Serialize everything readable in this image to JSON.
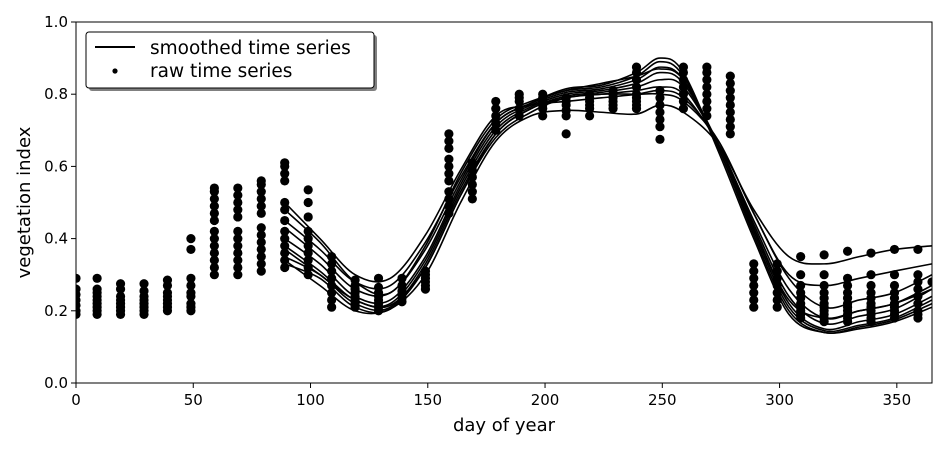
{
  "chart_data": {
    "type": "scatter",
    "xlabel": "day of year",
    "ylabel": "vegetation index",
    "xlim": [
      0,
      365
    ],
    "ylim": [
      0.0,
      1.0
    ],
    "xticks": [
      "0",
      "50",
      "100",
      "150",
      "200",
      "250",
      "300",
      "350"
    ],
    "yticks": [
      "0.0",
      "0.2",
      "0.4",
      "0.6",
      "0.8",
      "1.0"
    ],
    "grid": false,
    "legend_position": "top-left",
    "legend": [
      {
        "label": "smoothed time series",
        "marker": "line"
      },
      {
        "label": "raw time series",
        "marker": "dot"
      }
    ],
    "color": "#000000",
    "raw_time_series": [
      {
        "x": 0,
        "y": [
          0.19,
          0.2,
          0.215,
          0.23,
          0.245,
          0.26,
          0.29
        ]
      },
      {
        "x": 9,
        "y": [
          0.19,
          0.2,
          0.21,
          0.22,
          0.23,
          0.24,
          0.25,
          0.26,
          0.29
        ]
      },
      {
        "x": 19,
        "y": [
          0.19,
          0.2,
          0.21,
          0.22,
          0.23,
          0.24,
          0.26,
          0.275
        ]
      },
      {
        "x": 29,
        "y": [
          0.19,
          0.2,
          0.21,
          0.22,
          0.23,
          0.24,
          0.255,
          0.275
        ]
      },
      {
        "x": 39,
        "y": [
          0.2,
          0.21,
          0.22,
          0.23,
          0.24,
          0.25,
          0.27,
          0.285
        ]
      },
      {
        "x": 49,
        "y": [
          0.2,
          0.21,
          0.22,
          0.24,
          0.25,
          0.27,
          0.29,
          0.37,
          0.4
        ]
      },
      {
        "x": 59,
        "y": [
          0.3,
          0.32,
          0.34,
          0.36,
          0.38,
          0.4,
          0.42,
          0.45,
          0.47,
          0.49,
          0.51,
          0.53,
          0.54
        ]
      },
      {
        "x": 69,
        "y": [
          0.3,
          0.32,
          0.34,
          0.36,
          0.38,
          0.4,
          0.42,
          0.46,
          0.48,
          0.5,
          0.52,
          0.54
        ]
      },
      {
        "x": 79,
        "y": [
          0.31,
          0.33,
          0.35,
          0.37,
          0.39,
          0.41,
          0.43,
          0.47,
          0.49,
          0.51,
          0.53,
          0.55,
          0.56
        ]
      },
      {
        "x": 89,
        "y": [
          0.32,
          0.34,
          0.36,
          0.38,
          0.4,
          0.42,
          0.45,
          0.48,
          0.5,
          0.56,
          0.58,
          0.6,
          0.61
        ]
      },
      {
        "x": 99,
        "y": [
          0.3,
          0.32,
          0.34,
          0.36,
          0.38,
          0.4,
          0.42,
          0.46,
          0.5,
          0.535
        ]
      },
      {
        "x": 109,
        "y": [
          0.21,
          0.23,
          0.25,
          0.27,
          0.29,
          0.31,
          0.33,
          0.35
        ]
      },
      {
        "x": 119,
        "y": [
          0.21,
          0.22,
          0.23,
          0.24,
          0.25,
          0.26,
          0.27,
          0.285
        ]
      },
      {
        "x": 129,
        "y": [
          0.2,
          0.21,
          0.22,
          0.23,
          0.24,
          0.25,
          0.265,
          0.29
        ]
      },
      {
        "x": 139,
        "y": [
          0.225,
          0.235,
          0.245,
          0.255,
          0.27,
          0.29
        ]
      },
      {
        "x": 149,
        "y": [
          0.26,
          0.27,
          0.28,
          0.29,
          0.3,
          0.31
        ]
      },
      {
        "x": 159,
        "y": [
          0.47,
          0.49,
          0.51,
          0.53,
          0.56,
          0.58,
          0.6,
          0.62,
          0.65,
          0.67,
          0.69
        ]
      },
      {
        "x": 169,
        "y": [
          0.51,
          0.53,
          0.55,
          0.57,
          0.59,
          0.61
        ]
      },
      {
        "x": 179,
        "y": [
          0.7,
          0.72,
          0.74,
          0.76,
          0.78
        ]
      },
      {
        "x": 189,
        "y": [
          0.74,
          0.76,
          0.78,
          0.79,
          0.8
        ]
      },
      {
        "x": 199,
        "y": [
          0.74,
          0.76,
          0.77,
          0.78,
          0.79,
          0.8
        ]
      },
      {
        "x": 209,
        "y": [
          0.69,
          0.74,
          0.755,
          0.77,
          0.78,
          0.79
        ]
      },
      {
        "x": 219,
        "y": [
          0.74,
          0.76,
          0.77,
          0.78,
          0.79,
          0.8
        ]
      },
      {
        "x": 229,
        "y": [
          0.76,
          0.77,
          0.78,
          0.79,
          0.8,
          0.81
        ]
      },
      {
        "x": 239,
        "y": [
          0.76,
          0.77,
          0.78,
          0.79,
          0.8,
          0.82,
          0.84,
          0.86,
          0.875
        ]
      },
      {
        "x": 249,
        "y": [
          0.675,
          0.71,
          0.73,
          0.75,
          0.77,
          0.79,
          0.81
        ]
      },
      {
        "x": 259,
        "y": [
          0.76,
          0.78,
          0.8,
          0.82,
          0.84,
          0.86,
          0.875
        ]
      },
      {
        "x": 269,
        "y": [
          0.74,
          0.76,
          0.78,
          0.8,
          0.82,
          0.84,
          0.86,
          0.875
        ]
      },
      {
        "x": 279,
        "y": [
          0.69,
          0.71,
          0.73,
          0.75,
          0.77,
          0.79,
          0.81,
          0.83,
          0.85
        ]
      },
      {
        "x": 289,
        "y": [
          0.21,
          0.23,
          0.25,
          0.27,
          0.29,
          0.31,
          0.33
        ]
      },
      {
        "x": 299,
        "y": [
          0.21,
          0.23,
          0.25,
          0.27,
          0.29,
          0.31,
          0.33
        ]
      },
      {
        "x": 309,
        "y": [
          0.18,
          0.19,
          0.2,
          0.21,
          0.22,
          0.235,
          0.25,
          0.27,
          0.3,
          0.35
        ]
      },
      {
        "x": 319,
        "y": [
          0.17,
          0.18,
          0.19,
          0.2,
          0.21,
          0.22,
          0.235,
          0.25,
          0.27,
          0.3,
          0.355
        ]
      },
      {
        "x": 329,
        "y": [
          0.17,
          0.18,
          0.19,
          0.2,
          0.21,
          0.22,
          0.235,
          0.25,
          0.27,
          0.29,
          0.365
        ]
      },
      {
        "x": 339,
        "y": [
          0.17,
          0.18,
          0.19,
          0.2,
          0.21,
          0.22,
          0.235,
          0.25,
          0.27,
          0.3,
          0.36
        ]
      },
      {
        "x": 349,
        "y": [
          0.18,
          0.19,
          0.2,
          0.21,
          0.22,
          0.235,
          0.25,
          0.27,
          0.3,
          0.37
        ]
      },
      {
        "x": 359,
        "y": [
          0.18,
          0.19,
          0.2,
          0.22,
          0.24,
          0.26,
          0.28,
          0.3,
          0.37
        ]
      },
      {
        "x": 365,
        "y": [
          0.28
        ]
      }
    ],
    "smoothed_time_series": [
      {
        "x": [
          89,
          104,
          119,
          134,
          149,
          164,
          179,
          194,
          209,
          224,
          239,
          249,
          259,
          274,
          289,
          304,
          319,
          334,
          349,
          365
        ],
        "y": [
          0.33,
          0.29,
          0.21,
          0.205,
          0.32,
          0.52,
          0.68,
          0.75,
          0.79,
          0.8,
          0.81,
          0.82,
          0.8,
          0.66,
          0.45,
          0.26,
          0.18,
          0.2,
          0.22,
          0.27
        ]
      },
      {
        "x": [
          89,
          104,
          119,
          134,
          149,
          164,
          179,
          194,
          209,
          224,
          239,
          249,
          259,
          274,
          289,
          304,
          319,
          334,
          349,
          365
        ],
        "y": [
          0.35,
          0.3,
          0.22,
          0.21,
          0.33,
          0.53,
          0.69,
          0.76,
          0.795,
          0.805,
          0.82,
          0.84,
          0.82,
          0.66,
          0.44,
          0.24,
          0.165,
          0.185,
          0.205,
          0.26
        ]
      },
      {
        "x": [
          89,
          104,
          119,
          134,
          149,
          164,
          179,
          194,
          209,
          224,
          239,
          249,
          259,
          274,
          289,
          304,
          319,
          334,
          349,
          365
        ],
        "y": [
          0.38,
          0.31,
          0.23,
          0.22,
          0.34,
          0.54,
          0.7,
          0.765,
          0.8,
          0.81,
          0.83,
          0.86,
          0.83,
          0.66,
          0.43,
          0.22,
          0.15,
          0.17,
          0.19,
          0.24
        ]
      },
      {
        "x": [
          89,
          104,
          119,
          134,
          149,
          164,
          179,
          194,
          209,
          224,
          239,
          249,
          259,
          274,
          289,
          304,
          319,
          334,
          349,
          365
        ],
        "y": [
          0.4,
          0.33,
          0.24,
          0.23,
          0.35,
          0.55,
          0.71,
          0.77,
          0.805,
          0.815,
          0.84,
          0.875,
          0.84,
          0.65,
          0.42,
          0.21,
          0.145,
          0.16,
          0.18,
          0.23
        ]
      },
      {
        "x": [
          89,
          104,
          119,
          134,
          149,
          164,
          179,
          194,
          209,
          224,
          239,
          249,
          259,
          274,
          289,
          304,
          319,
          334,
          349,
          365
        ],
        "y": [
          0.43,
          0.35,
          0.26,
          0.25,
          0.37,
          0.56,
          0.72,
          0.775,
          0.81,
          0.82,
          0.85,
          0.89,
          0.85,
          0.65,
          0.41,
          0.2,
          0.14,
          0.155,
          0.175,
          0.22
        ]
      },
      {
        "x": [
          89,
          104,
          119,
          134,
          149,
          164,
          179,
          194,
          209,
          224,
          239,
          249,
          259,
          274,
          289,
          304,
          319,
          334,
          349,
          365
        ],
        "y": [
          0.45,
          0.37,
          0.28,
          0.27,
          0.39,
          0.57,
          0.72,
          0.775,
          0.815,
          0.825,
          0.86,
          0.9,
          0.86,
          0.64,
          0.4,
          0.19,
          0.14,
          0.15,
          0.17,
          0.21
        ]
      },
      {
        "x": [
          89,
          104,
          119,
          134,
          149,
          164,
          179,
          194,
          209,
          224,
          239,
          249,
          259,
          274,
          289,
          304,
          319,
          334,
          349,
          365
        ],
        "y": [
          0.5,
          0.4,
          0.3,
          0.29,
          0.41,
          0.59,
          0.74,
          0.77,
          0.78,
          0.79,
          0.8,
          0.81,
          0.79,
          0.67,
          0.47,
          0.29,
          0.21,
          0.23,
          0.25,
          0.3
        ]
      },
      {
        "x": [
          89,
          104,
          119,
          134,
          149,
          164,
          179,
          194,
          209,
          224,
          239,
          249,
          259,
          274,
          289,
          304,
          319,
          334,
          349,
          365
        ],
        "y": [
          0.34,
          0.27,
          0.2,
          0.205,
          0.3,
          0.5,
          0.67,
          0.74,
          0.755,
          0.75,
          0.745,
          0.77,
          0.75,
          0.66,
          0.48,
          0.35,
          0.33,
          0.35,
          0.37,
          0.38
        ]
      },
      {
        "x": [
          89,
          104,
          119,
          134,
          149,
          164,
          179,
          194,
          209,
          224,
          239,
          249,
          259,
          274,
          289,
          304,
          319,
          334,
          349,
          365
        ],
        "y": [
          0.37,
          0.3,
          0.23,
          0.215,
          0.32,
          0.52,
          0.69,
          0.76,
          0.79,
          0.8,
          0.8,
          0.8,
          0.78,
          0.67,
          0.47,
          0.3,
          0.27,
          0.29,
          0.31,
          0.33
        ]
      },
      {
        "x": [
          89,
          104,
          119,
          134,
          149,
          164,
          179,
          194,
          209,
          224,
          239,
          249,
          259,
          274,
          289,
          304,
          319,
          334,
          349,
          365
        ],
        "y": [
          0.48,
          0.39,
          0.28,
          0.25,
          0.38,
          0.58,
          0.73,
          0.78,
          0.81,
          0.83,
          0.85,
          0.87,
          0.84,
          0.66,
          0.43,
          0.23,
          0.18,
          0.2,
          0.22,
          0.26
        ]
      }
    ]
  }
}
